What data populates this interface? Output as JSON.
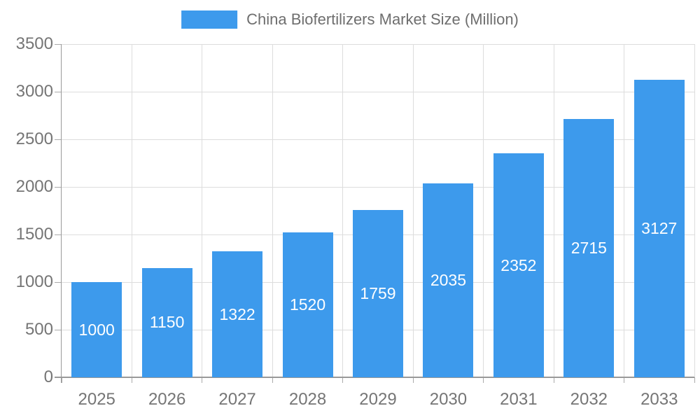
{
  "legend": {
    "label": "China Biofertilizers Market Size (Million)",
    "swatch_color": "#3D9AEC"
  },
  "chart_data": {
    "type": "bar",
    "title": "China Biofertilizers Market Size (Million)",
    "categories": [
      "2025",
      "2026",
      "2027",
      "2028",
      "2029",
      "2030",
      "2031",
      "2032",
      "2033"
    ],
    "values": [
      1000,
      1150,
      1322,
      1520,
      1759,
      2035,
      2352,
      2715,
      3127
    ],
    "value_labels": [
      "1000",
      "1150",
      "1322",
      "1520",
      "1759",
      "2035",
      "2352",
      "2715",
      "3127"
    ],
    "xlabel": "",
    "ylabel": "",
    "ylim": [
      0,
      3500
    ],
    "yticks": [
      0,
      500,
      1000,
      1500,
      2000,
      2500,
      3000,
      3500
    ],
    "grid": true,
    "legend_position": "top-center",
    "bar_color": "#3D9AEC",
    "bar_label_color": "#FFFFFF",
    "axis_color": "#999999",
    "tick_color": "#AAAAAA",
    "grid_color": "#DDDDDD",
    "tick_label_color": "#757575",
    "legend_text_color": "#6E6E6E",
    "background_color": "#FFFFFF"
  }
}
